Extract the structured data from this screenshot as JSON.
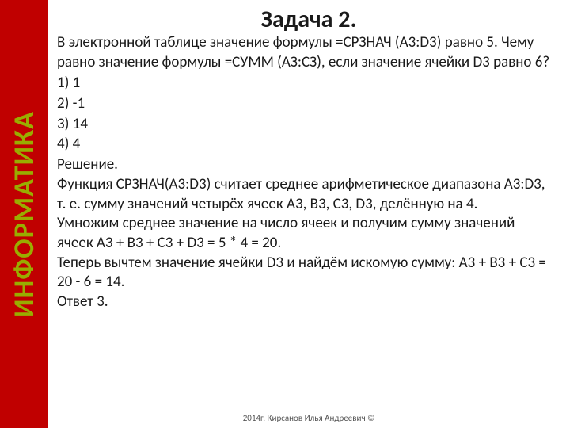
{
  "sidebar": {
    "label": "ИНФОРМАТИКА",
    "bg_color": "#c00000",
    "text_color": "#99ad00"
  },
  "title": "Задача 2.",
  "problem": {
    "text": "В электронной таблице значение формулы =CPЗНАЧ (A3:D3) равно 5. Чему равно значение формулы =СУММ (АЗ:СЗ), если значение ячейки D3 равно 6?"
  },
  "options": {
    "opt1": "1) 1",
    "opt2": "2) -1",
    "opt3": "3) 14",
    "opt4": "4) 4"
  },
  "solution": {
    "label": "Решение.",
    "para1": "Функция СРЗНАЧ(A3:D3) считает среднее арифметическое диапазона A3:D3, т. е. сумму значений четырёх ячеек A3, B3, C3, D3, делённую на 4.",
    "para2": "Умножим среднее значение на число ячеек и получим сумму значений ячеек A3 + B3 + C3 + D3 = 5 * 4 = 20.",
    "para3": " Теперь вычтем значение ячейки D3 и найдём искомую сумму: A3 + B3 + C3 = 20 - 6 = 14.",
    "answer": "Ответ 3."
  },
  "footer": "2014г. Кирсанов Илья Андреевич ©"
}
